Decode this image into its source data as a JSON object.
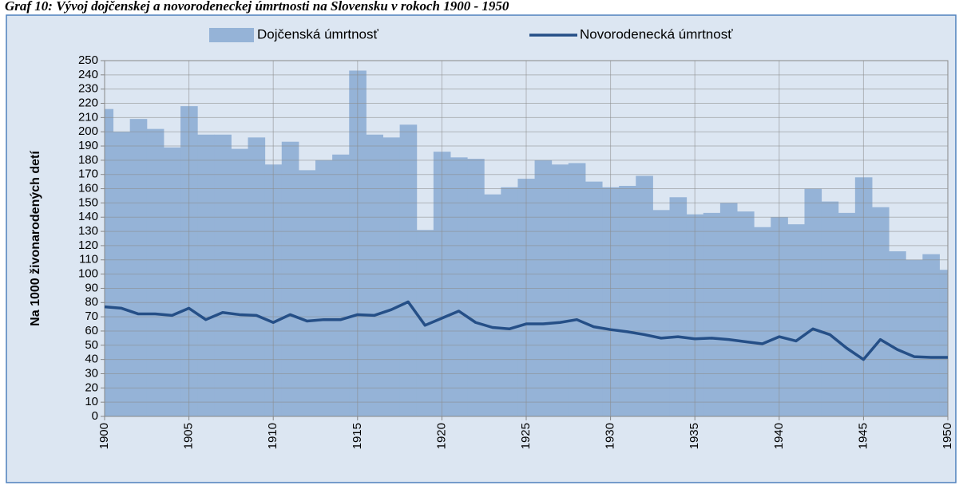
{
  "chart_data": {
    "type": "bar",
    "title": "Graf 10: Vývoj dojčenskej a novorodeneckej úmrtnosti na Slovensku v rokoch 1900 - 1950",
    "y_label": "Na 1000 živonarodených detí",
    "x": [
      1900,
      1901,
      1902,
      1903,
      1904,
      1905,
      1906,
      1907,
      1908,
      1909,
      1910,
      1911,
      1912,
      1913,
      1914,
      1915,
      1916,
      1917,
      1918,
      1919,
      1920,
      1921,
      1922,
      1923,
      1924,
      1925,
      1926,
      1927,
      1928,
      1929,
      1930,
      1931,
      1932,
      1933,
      1934,
      1935,
      1936,
      1937,
      1938,
      1939,
      1940,
      1941,
      1942,
      1943,
      1944,
      1945,
      1946,
      1947,
      1948,
      1949,
      1950
    ],
    "series": [
      {
        "name": "Dojčenská úmrtnosť",
        "type": "bar",
        "color": "#95b3d7",
        "values": [
          216,
          200,
          209,
          202,
          189,
          218,
          198,
          198,
          188,
          196,
          177,
          193,
          173,
          180,
          184,
          243,
          198,
          196,
          205,
          131,
          186,
          182,
          181,
          156,
          161,
          167,
          180,
          177,
          178,
          165,
          161,
          162,
          169,
          145,
          154,
          142,
          143,
          150,
          144,
          133,
          140,
          135,
          160,
          151,
          143,
          168,
          147,
          116,
          110,
          114,
          103
        ]
      },
      {
        "name": "Novorodenecká úmrtnosť",
        "type": "line",
        "color": "#254f87",
        "values": [
          77,
          76,
          72,
          72,
          71,
          76,
          68,
          73,
          71.5,
          71,
          66,
          71.5,
          67,
          68,
          68,
          71.5,
          71,
          75,
          80.5,
          64,
          69,
          74,
          66,
          62.5,
          61.5,
          65,
          65,
          66,
          68,
          63,
          61,
          59.5,
          57.5,
          55,
          56,
          54.5,
          55,
          54,
          52.5,
          51,
          56,
          53,
          61.5,
          57.5,
          48,
          40,
          54,
          47,
          42,
          41.5,
          41.5
        ]
      }
    ],
    "xlim": [
      1900,
      1950
    ],
    "xticks": [
      1900,
      1905,
      1910,
      1915,
      1920,
      1925,
      1930,
      1935,
      1940,
      1945,
      1950
    ],
    "ylim": [
      0,
      250
    ],
    "yticks": [
      0,
      10,
      20,
      30,
      40,
      50,
      60,
      70,
      80,
      90,
      100,
      110,
      120,
      130,
      140,
      150,
      160,
      170,
      180,
      190,
      200,
      210,
      220,
      230,
      240,
      250
    ],
    "grid": true
  }
}
